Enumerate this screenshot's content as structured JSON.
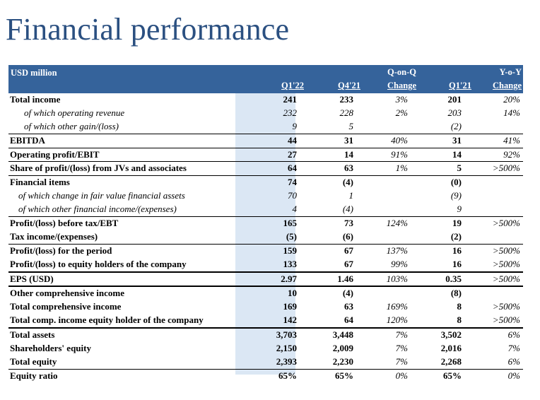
{
  "title": "Financial performance",
  "header": {
    "unit": "USD million",
    "columns": [
      {
        "top": "",
        "bottom": "Q1'22"
      },
      {
        "top": "",
        "bottom": "Q4'21"
      },
      {
        "top": "Q-on-Q",
        "bottom": "Change"
      },
      {
        "top": "",
        "bottom": "Q1'21"
      },
      {
        "top": "Y-o-Y",
        "bottom": "Change"
      }
    ]
  },
  "rows": [
    {
      "label": "Total income",
      "q122": "241",
      "q421": "233",
      "qoq": "3%",
      "q121": "201",
      "yoy": "20%"
    },
    {
      "label": "of which operating revenue",
      "q122": "232",
      "q421": "228",
      "qoq": "2%",
      "q121": "203",
      "yoy": "14%"
    },
    {
      "label": "of which other gain/(loss)",
      "q122": "9",
      "q421": "5",
      "qoq": "",
      "q121": "(2)",
      "yoy": ""
    },
    {
      "label": "EBITDA",
      "q122": "44",
      "q421": "31",
      "qoq": "40%",
      "q121": "31",
      "yoy": "41%"
    },
    {
      "label": "Operating profit/EBIT",
      "q122": "27",
      "q421": "14",
      "qoq": "91%",
      "q121": "14",
      "yoy": "92%"
    },
    {
      "label": "Share of profit/(loss) from JVs and associates",
      "q122": "64",
      "q421": "63",
      "qoq": "1%",
      "q121": "5",
      "yoy": ">500%"
    },
    {
      "label": "Financial items",
      "q122": "74",
      "q421": "(4)",
      "qoq": "",
      "q121": "(0)",
      "yoy": ""
    },
    {
      "label": "of which change in fair value financial assets",
      "q122": "70",
      "q421": "1",
      "qoq": "",
      "q121": "(9)",
      "yoy": ""
    },
    {
      "label": "of which other financial income/(expenses)",
      "q122": "4",
      "q421": "(4)",
      "qoq": "",
      "q121": "9",
      "yoy": ""
    },
    {
      "label": "Profit/(loss) before tax/EBT",
      "q122": "165",
      "q421": "73",
      "qoq": "124%",
      "q121": "19",
      "yoy": ">500%"
    },
    {
      "label": "Tax income/(expenses)",
      "q122": "(5)",
      "q421": "(6)",
      "qoq": "",
      "q121": "(2)",
      "yoy": ""
    },
    {
      "label": "Profit/(loss) for the period",
      "q122": "159",
      "q421": "67",
      "qoq": "137%",
      "q121": "16",
      "yoy": ">500%"
    },
    {
      "label": "Profit/(loss) to equity holders of the company",
      "q122": "133",
      "q421": "67",
      "qoq": "99%",
      "q121": "16",
      "yoy": ">500%"
    },
    {
      "label": "EPS (USD)",
      "q122": "2.97",
      "q421": "1.46",
      "qoq": "103%",
      "q121": "0.35",
      "yoy": ">500%"
    },
    {
      "label": "Other comprehensive income",
      "q122": "10",
      "q421": "(4)",
      "qoq": "",
      "q121": "(8)",
      "yoy": ""
    },
    {
      "label": "Total comprehensive income",
      "q122": "169",
      "q421": "63",
      "qoq": "169%",
      "q121": "8",
      "yoy": ">500%"
    },
    {
      "label": "Total comp. income equity holder of the company",
      "q122": "142",
      "q421": "64",
      "qoq": "120%",
      "q121": "8",
      "yoy": ">500%"
    },
    {
      "label": "Total assets",
      "q122": "3,703",
      "q421": "3,448",
      "qoq": "7%",
      "q121": "3,502",
      "yoy": "6%"
    },
    {
      "label": "Shareholders' equity",
      "q122": "2,150",
      "q421": "2,009",
      "qoq": "7%",
      "q121": "2,016",
      "yoy": "7%"
    },
    {
      "label": "Total equity",
      "q122": "2,393",
      "q421": "2,230",
      "qoq": "7%",
      "q121": "2,268",
      "yoy": "6%"
    },
    {
      "label": "Equity ratio",
      "q122": "65%",
      "q421": "65%",
      "qoq": "0%",
      "q121": "65%",
      "yoy": "0%"
    }
  ]
}
